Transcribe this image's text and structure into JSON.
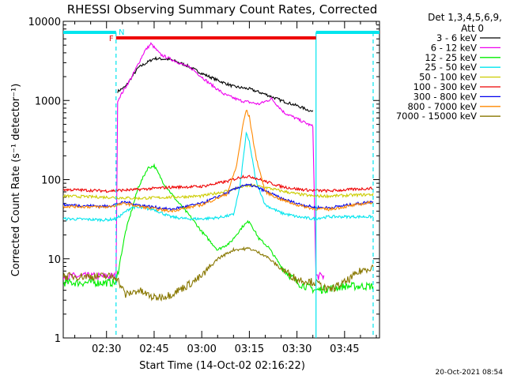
{
  "chart_data": {
    "type": "line",
    "title": "RHESSI Observing Summary Count Rates, Corrected",
    "xlabel": "Start Time (14-Oct-02 02:16:22)",
    "ylabel": "Corrected Count Rate (s⁻¹ detector⁻¹)",
    "y_scale": "log",
    "ylim": [
      1,
      10000
    ],
    "xlim": [
      "02:16:22",
      "03:56:00"
    ],
    "x_ticks": [
      "02:30",
      "02:45",
      "03:00",
      "03:15",
      "03:30",
      "03:45"
    ],
    "y_ticks": [
      "1",
      "10",
      "100",
      "1000",
      "10000"
    ],
    "grid": false,
    "legend_position": "right",
    "legend_header": [
      "Det 1,3,4,5,6,9,",
      "Att 0"
    ],
    "flags": {
      "N": {
        "label": "N",
        "color": "#00e5ee",
        "intervals": [
          [
            "02:16:22",
            "02:33:00"
          ],
          [
            "03:36:00",
            "03:56:00"
          ]
        ]
      },
      "F": {
        "label": "F",
        "color": "#ee0000",
        "intervals": [
          [
            "02:33:00",
            "03:36:00"
          ]
        ]
      }
    },
    "markers": [
      {
        "time": "02:33:00",
        "color": "#00e5ee",
        "style": "dashed"
      },
      {
        "time": "03:36:00",
        "color": "#00e5ee",
        "style": "solid"
      },
      {
        "time": "03:54:00",
        "color": "#00e5ee",
        "style": "dashed"
      }
    ],
    "timestamp": "20-Oct-2021 08:54",
    "series": [
      {
        "name": "3 - 6 keV",
        "color": "#000000",
        "points": [
          [
            "02:33:30",
            1300
          ],
          [
            "02:36:00",
            1500
          ],
          [
            "02:40:00",
            2600
          ],
          [
            "02:45:00",
            3400
          ],
          [
            "02:50:00",
            3300
          ],
          [
            "02:55:00",
            2800
          ],
          [
            "03:00:00",
            2200
          ],
          [
            "03:05:00",
            1800
          ],
          [
            "03:10:00",
            1500
          ],
          [
            "03:15:00",
            1400
          ],
          [
            "03:20:00",
            1200
          ],
          [
            "03:25:00",
            1000
          ],
          [
            "03:30:00",
            860
          ],
          [
            "03:35:00",
            720
          ]
        ]
      },
      {
        "name": "6 - 12 keV",
        "color": "#ee00ee",
        "points": [
          [
            "02:16:22",
            6
          ],
          [
            "02:33:00",
            6
          ],
          [
            "02:33:30",
            1000
          ],
          [
            "02:38:00",
            2000
          ],
          [
            "02:42:00",
            4200
          ],
          [
            "02:44:00",
            5200
          ],
          [
            "02:47:00",
            3800
          ],
          [
            "02:52:00",
            3100
          ],
          [
            "02:57:00",
            2500
          ],
          [
            "03:02:00",
            1700
          ],
          [
            "03:07:00",
            1200
          ],
          [
            "03:12:00",
            1000
          ],
          [
            "03:15:00",
            950
          ],
          [
            "03:18:00",
            900
          ],
          [
            "03:22:00",
            1050
          ],
          [
            "03:26:00",
            700
          ],
          [
            "03:31:00",
            560
          ],
          [
            "03:35:00",
            470
          ],
          [
            "03:36:00",
            6
          ],
          [
            "03:38:30",
            6
          ]
        ]
      },
      {
        "name": "12 - 25 keV",
        "color": "#00ee00",
        "points": [
          [
            "02:16:22",
            5
          ],
          [
            "02:33:00",
            5
          ],
          [
            "02:36:00",
            22
          ],
          [
            "02:40:00",
            80
          ],
          [
            "02:43:00",
            140
          ],
          [
            "02:45:00",
            150
          ],
          [
            "02:48:00",
            90
          ],
          [
            "02:52:00",
            55
          ],
          [
            "02:57:00",
            32
          ],
          [
            "03:00:00",
            22
          ],
          [
            "03:05:00",
            13
          ],
          [
            "03:09:00",
            16
          ],
          [
            "03:13:00",
            26
          ],
          [
            "03:15:00",
            30
          ],
          [
            "03:18:00",
            18
          ],
          [
            "03:21:00",
            14
          ],
          [
            "03:25:00",
            8
          ],
          [
            "03:30:00",
            5
          ],
          [
            "03:36:00",
            4
          ],
          [
            "03:45:00",
            4.5
          ],
          [
            "03:54:00",
            4.5
          ]
        ]
      },
      {
        "name": "25 - 50 keV",
        "color": "#00e5ee",
        "points": [
          [
            "02:16:22",
            32
          ],
          [
            "02:30:00",
            31
          ],
          [
            "02:33:00",
            32
          ],
          [
            "02:38:00",
            45
          ],
          [
            "02:45:00",
            42
          ],
          [
            "02:50:00",
            34
          ],
          [
            "02:55:00",
            32
          ],
          [
            "03:00:00",
            32
          ],
          [
            "03:05:00",
            33
          ],
          [
            "03:10:00",
            36
          ],
          [
            "03:12:00",
            80
          ],
          [
            "03:14:00",
            380
          ],
          [
            "03:15:00",
            300
          ],
          [
            "03:17:00",
            100
          ],
          [
            "03:20:00",
            48
          ],
          [
            "03:25:00",
            38
          ],
          [
            "03:30:00",
            34
          ],
          [
            "03:35:00",
            32
          ],
          [
            "03:40:00",
            34
          ],
          [
            "03:54:00",
            34
          ]
        ]
      },
      {
        "name": "50 - 100 keV",
        "color": "#cccc00",
        "points": [
          [
            "02:16:22",
            62
          ],
          [
            "02:30:00",
            60
          ],
          [
            "02:40:00",
            58
          ],
          [
            "02:50:00",
            60
          ],
          [
            "03:00:00",
            62
          ],
          [
            "03:08:00",
            72
          ],
          [
            "03:13:00",
            82
          ],
          [
            "03:16:00",
            84
          ],
          [
            "03:20:00",
            80
          ],
          [
            "03:25:00",
            72
          ],
          [
            "03:30:00",
            66
          ],
          [
            "03:35:00",
            62
          ],
          [
            "03:40:00",
            62
          ],
          [
            "03:54:00",
            65
          ]
        ]
      },
      {
        "name": "100 - 300 keV",
        "color": "#ee0000",
        "points": [
          [
            "02:16:22",
            75
          ],
          [
            "02:30:00",
            72
          ],
          [
            "02:40:00",
            75
          ],
          [
            "02:50:00",
            80
          ],
          [
            "03:00:00",
            82
          ],
          [
            "03:08:00",
            95
          ],
          [
            "03:13:00",
            110
          ],
          [
            "03:16:00",
            108
          ],
          [
            "03:20:00",
            95
          ],
          [
            "03:25:00",
            82
          ],
          [
            "03:30:00",
            76
          ],
          [
            "03:35:00",
            73
          ],
          [
            "03:40:00",
            72
          ],
          [
            "03:54:00",
            78
          ]
        ]
      },
      {
        "name": "300 - 800 keV",
        "color": "#0000ee",
        "points": [
          [
            "02:16:22",
            48
          ],
          [
            "02:30:00",
            46
          ],
          [
            "02:36:00",
            52
          ],
          [
            "02:40:00",
            48
          ],
          [
            "02:50:00",
            42
          ],
          [
            "03:00:00",
            50
          ],
          [
            "03:08:00",
            68
          ],
          [
            "03:13:00",
            85
          ],
          [
            "03:16:00",
            84
          ],
          [
            "03:20:00",
            72
          ],
          [
            "03:25:00",
            58
          ],
          [
            "03:30:00",
            50
          ],
          [
            "03:35:00",
            45
          ],
          [
            "03:40:00",
            44
          ],
          [
            "03:54:00",
            53
          ]
        ]
      },
      {
        "name": "800 - 7000 keV",
        "color": "#ff8800",
        "points": [
          [
            "02:16:22",
            46
          ],
          [
            "02:30:00",
            45
          ],
          [
            "02:36:00",
            50
          ],
          [
            "02:40:00",
            46
          ],
          [
            "02:50:00",
            40
          ],
          [
            "03:00:00",
            48
          ],
          [
            "03:08:00",
            66
          ],
          [
            "03:11:00",
            150
          ],
          [
            "03:13:00",
            500
          ],
          [
            "03:14:00",
            760
          ],
          [
            "03:15:00",
            620
          ],
          [
            "03:17:00",
            200
          ],
          [
            "03:20:00",
            70
          ],
          [
            "03:25:00",
            56
          ],
          [
            "03:30:00",
            48
          ],
          [
            "03:35:00",
            43
          ],
          [
            "03:40:00",
            42
          ],
          [
            "03:54:00",
            52
          ]
        ]
      },
      {
        "name": "7000 - 15000 keV",
        "color": "#887700",
        "points": [
          [
            "02:16:22",
            6
          ],
          [
            "02:30:00",
            6
          ],
          [
            "02:33:00",
            6
          ],
          [
            "02:36:00",
            3.5
          ],
          [
            "02:40:00",
            4
          ],
          [
            "02:45:00",
            3.2
          ],
          [
            "02:50:00",
            3.5
          ],
          [
            "02:55:00",
            4.5
          ],
          [
            "03:00:00",
            6
          ],
          [
            "03:05:00",
            10
          ],
          [
            "03:10:00",
            13
          ],
          [
            "03:15:00",
            13.5
          ],
          [
            "03:20:00",
            11
          ],
          [
            "03:25:00",
            7.5
          ],
          [
            "03:30:00",
            5.5
          ],
          [
            "03:36:00",
            5
          ],
          [
            "03:40:00",
            4
          ],
          [
            "03:45:00",
            5
          ],
          [
            "03:50:00",
            7
          ],
          [
            "03:54:00",
            8
          ]
        ]
      }
    ]
  }
}
